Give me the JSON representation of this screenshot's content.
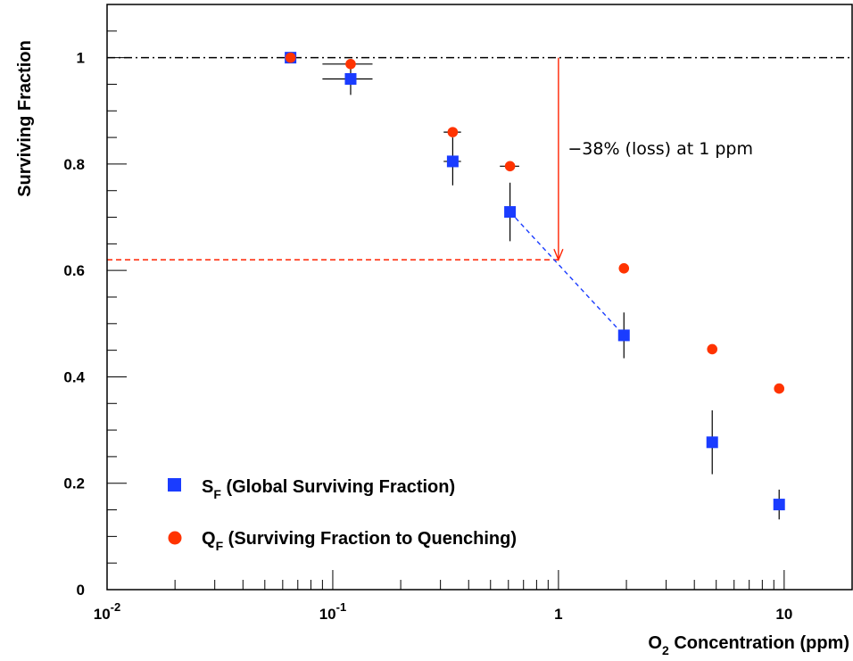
{
  "chart_data": {
    "type": "scatter",
    "x_scale": "log",
    "xlim": [
      0.01,
      20
    ],
    "ylim": [
      0,
      1.1
    ],
    "grid": false,
    "legend_position": "bottom-left",
    "xlabel": {
      "main": "O",
      "sub": "2",
      "rest": " Concentration (ppm)"
    },
    "ylabel": "Surviving Fraction",
    "x_ticks": [
      {
        "value": 0.01,
        "base": "10",
        "exp": "-2"
      },
      {
        "value": 0.1,
        "base": "10",
        "exp": "-1"
      },
      {
        "value": 1,
        "base": "1",
        "exp": ""
      },
      {
        "value": 10,
        "base": "10",
        "exp": ""
      }
    ],
    "y_ticks": [
      {
        "value": 0,
        "label": "0"
      },
      {
        "value": 0.2,
        "label": "0.2"
      },
      {
        "value": 0.4,
        "label": "0.4"
      },
      {
        "value": 0.6,
        "label": "0.6"
      },
      {
        "value": 0.8,
        "label": "0.8"
      },
      {
        "value": 1.0,
        "label": "1"
      }
    ],
    "series": [
      {
        "name": {
          "main": "S",
          "sub": "F",
          "rest": " (Global Surviving Fraction)"
        },
        "marker": "square",
        "color": "#1a3cff",
        "points": [
          {
            "x": 0.065,
            "y": 1.0,
            "yerr": 0.0,
            "xerr": [
              0.0,
              0.0
            ]
          },
          {
            "x": 0.12,
            "y": 0.96,
            "yerr": 0.03,
            "xerr": [
              0.03,
              0.03
            ]
          },
          {
            "x": 0.34,
            "y": 0.805,
            "yerr": 0.045,
            "xerr": [
              0.03,
              0.03
            ]
          },
          {
            "x": 0.61,
            "y": 0.71,
            "yerr": 0.055,
            "xerr": [
              0.0,
              0.0
            ]
          },
          {
            "x": 1.95,
            "y": 0.478,
            "yerr": 0.043,
            "xerr": [
              0.0,
              0.0
            ]
          },
          {
            "x": 4.8,
            "y": 0.277,
            "yerr": 0.06,
            "xerr": [
              0.0,
              0.0
            ]
          },
          {
            "x": 9.5,
            "y": 0.16,
            "yerr": 0.028,
            "xerr": [
              0.0,
              0.0
            ]
          }
        ]
      },
      {
        "name": {
          "main": "Q",
          "sub": "F",
          "rest": " (Surviving Fraction to Quenching)"
        },
        "marker": "circle",
        "color": "#ff3300",
        "points": [
          {
            "x": 0.065,
            "y": 1.0,
            "xerr": [
              0.0,
              0.0
            ]
          },
          {
            "x": 0.12,
            "y": 0.988,
            "xerr": [
              0.03,
              0.03
            ]
          },
          {
            "x": 0.34,
            "y": 0.86,
            "xerr": [
              0.03,
              0.03
            ]
          },
          {
            "x": 0.61,
            "y": 0.796,
            "xerr": [
              0.06,
              0.06
            ]
          },
          {
            "x": 1.95,
            "y": 0.604,
            "xerr": [
              0.0,
              0.0
            ]
          },
          {
            "x": 4.8,
            "y": 0.452,
            "xerr": [
              0.0,
              0.0
            ]
          },
          {
            "x": 9.5,
            "y": 0.378,
            "xerr": [
              0.0,
              0.0
            ]
          }
        ]
      }
    ],
    "reference_line": {
      "y": 1.0,
      "style": "dash-dot",
      "color": "#000000"
    },
    "loss_line": {
      "y": 0.62,
      "x_end": 1.0,
      "style": "dashed",
      "color": "#ff2200"
    },
    "interp_line": {
      "from": [
        0.61,
        0.71
      ],
      "to": [
        1.95,
        0.478
      ],
      "style": "dashed",
      "color": "#1a3cff"
    },
    "arrow": {
      "x": 1.0,
      "y_from": 1.0,
      "y_to": 0.62,
      "color": "#ff2200"
    },
    "annotation": {
      "text": "−38% (loss) at 1 ppm",
      "x": 1.1,
      "y": 0.81
    }
  }
}
